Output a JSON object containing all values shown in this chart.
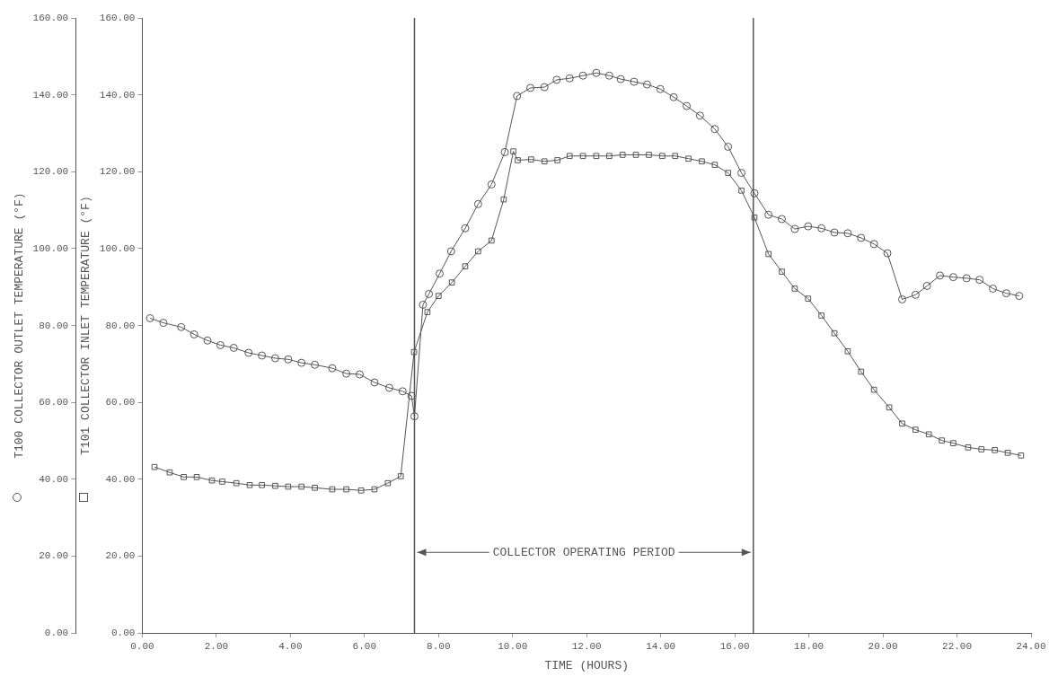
{
  "chart_data": {
    "type": "line",
    "xlabel": "TIME (HOURS)",
    "ylabel": "T100 COLLECTOR OUTLET TEMPERATURE (°F)",
    "y2label": "T101 COLLECTOR INLET TEMPERATURE (°F)",
    "xlim": [
      0,
      24
    ],
    "xticks": [
      {
        "value": 0,
        "label": "0.00"
      },
      {
        "value": 2,
        "label": "2.00"
      },
      {
        "value": 4,
        "label": "4.00"
      },
      {
        "value": 6,
        "label": "6.00"
      },
      {
        "value": 8,
        "label": "8.00"
      },
      {
        "value": 10,
        "label": "10.00"
      },
      {
        "value": 12,
        "label": "12.00"
      },
      {
        "value": 14,
        "label": "14.00"
      },
      {
        "value": 16,
        "label": "16.00"
      },
      {
        "value": 18,
        "label": "18.00"
      },
      {
        "value": 20,
        "label": "20.00"
      },
      {
        "value": 22,
        "label": "22.00"
      },
      {
        "value": 24,
        "label": "24.00"
      }
    ],
    "ylim": [
      0,
      160
    ],
    "yticks": [
      {
        "value": 0,
        "label": "0.00"
      },
      {
        "value": 20,
        "label": "20.00"
      },
      {
        "value": 40,
        "label": "40.00"
      },
      {
        "value": 60,
        "label": "60.00"
      },
      {
        "value": 80,
        "label": "80.00"
      },
      {
        "value": 100,
        "label": "100.00"
      },
      {
        "value": 120,
        "label": "120.00"
      },
      {
        "value": 140,
        "label": "140.00"
      },
      {
        "value": 160,
        "label": "160.00"
      }
    ],
    "y2lim": [
      0,
      160
    ],
    "y2ticks": [
      {
        "value": 0,
        "label": "0.00"
      },
      {
        "value": 20,
        "label": "20.00"
      },
      {
        "value": 40,
        "label": "40.00"
      },
      {
        "value": 60,
        "label": "60.00"
      },
      {
        "value": 80,
        "label": "80.00"
      },
      {
        "value": 100,
        "label": "100.00"
      },
      {
        "value": 120,
        "label": "120.00"
      },
      {
        "value": 140,
        "label": "140.00"
      },
      {
        "value": 160,
        "label": "160.00"
      }
    ],
    "grid": false,
    "legend": false,
    "line_style": "solid",
    "series": [
      {
        "marker": "circle",
        "color": "#555555",
        "x": [
          0.21,
          0.57,
          1.05,
          1.4,
          1.76,
          2.11,
          2.47,
          2.87,
          3.23,
          3.59,
          3.94,
          4.3,
          4.66,
          5.13,
          5.51,
          5.87,
          6.27,
          6.67,
          7.03,
          7.27,
          7.35,
          7.58,
          7.74,
          8.03,
          8.34,
          8.72,
          9.07,
          9.43,
          9.79,
          10.12,
          10.48,
          10.86,
          11.19,
          11.54,
          11.9,
          12.26,
          12.61,
          12.92,
          13.28,
          13.63,
          13.99,
          14.35,
          14.7,
          15.06,
          15.46,
          15.82,
          16.18,
          16.53,
          16.91,
          17.27,
          17.62,
          17.98,
          18.34,
          18.69,
          19.05,
          19.41,
          19.76,
          20.12,
          20.52,
          20.88,
          21.19,
          21.54,
          21.9,
          22.26,
          22.61,
          22.97,
          23.33,
          23.68
        ],
        "values": [
          81.9,
          80.7,
          79.6,
          77.7,
          76.1,
          74.9,
          74.2,
          72.9,
          72.2,
          71.5,
          71.2,
          70.3,
          69.8,
          68.9,
          67.5,
          67.3,
          65.2,
          63.8,
          62.9,
          61.7,
          56.4,
          85.4,
          88.2,
          93.5,
          99.3,
          105.3,
          111.6,
          116.7,
          125.1,
          139.7,
          141.8,
          142,
          143.9,
          144.3,
          145,
          145.7,
          145,
          144.1,
          143.4,
          142.7,
          141.5,
          139.4,
          137.1,
          134.6,
          131.1,
          126.5,
          119.7,
          114.4,
          108.8,
          107.7,
          105.1,
          105.8,
          105.3,
          104.2,
          104,
          102.8,
          101.2,
          98.8,
          86.8,
          88,
          90.3,
          93,
          92.6,
          92.3,
          91.9,
          89.6,
          88.4,
          87.7
        ]
      },
      {
        "axis": "y2",
        "marker": "square",
        "color": "#555555",
        "x": [
          0.33,
          0.74,
          1.12,
          1.47,
          1.88,
          2.16,
          2.54,
          2.9,
          3.23,
          3.59,
          3.94,
          4.3,
          4.66,
          5.13,
          5.51,
          5.91,
          6.27,
          6.63,
          6.98,
          7.34,
          7.7,
          8,
          8.36,
          8.72,
          9.07,
          9.43,
          9.76,
          10.02,
          10.14,
          10.5,
          10.86,
          11.21,
          11.54,
          11.9,
          12.26,
          12.61,
          12.97,
          13.33,
          13.68,
          14.04,
          14.39,
          14.75,
          15.11,
          15.46,
          15.82,
          16.18,
          16.53,
          16.91,
          17.27,
          17.62,
          17.98,
          18.34,
          18.69,
          19.05,
          19.41,
          19.76,
          20.17,
          20.52,
          20.88,
          21.24,
          21.59,
          21.9,
          22.3,
          22.66,
          23.02,
          23.37,
          23.73
        ],
        "values": [
          43.2,
          41.8,
          40.6,
          40.6,
          39.7,
          39.4,
          39,
          38.5,
          38.5,
          38.3,
          38.1,
          38.1,
          37.8,
          37.4,
          37.4,
          37.1,
          37.4,
          39,
          40.8,
          73.1,
          83.5,
          87.7,
          91.2,
          95.4,
          99.3,
          102.1,
          112.8,
          125.3,
          123,
          123.2,
          122.7,
          123,
          124.1,
          124.1,
          124.1,
          124.1,
          124.4,
          124.4,
          124.4,
          124.1,
          124.1,
          123.4,
          122.7,
          121.8,
          119.7,
          115.1,
          108.1,
          98.6,
          94,
          89.6,
          87,
          82.6,
          78,
          73.3,
          68,
          63.3,
          58.7,
          54.5,
          52.9,
          51.7,
          50.1,
          49.4,
          48.3,
          47.8,
          47.6,
          46.9,
          46.2
        ]
      }
    ],
    "ref_lines": [
      {
        "axis": "x",
        "value": 7.35
      },
      {
        "axis": "x",
        "value": 16.5
      }
    ],
    "annotations": [
      {
        "text": "COLLECTOR OPERATING PERIOD",
        "x": 7.35,
        "y": 21
      }
    ]
  }
}
